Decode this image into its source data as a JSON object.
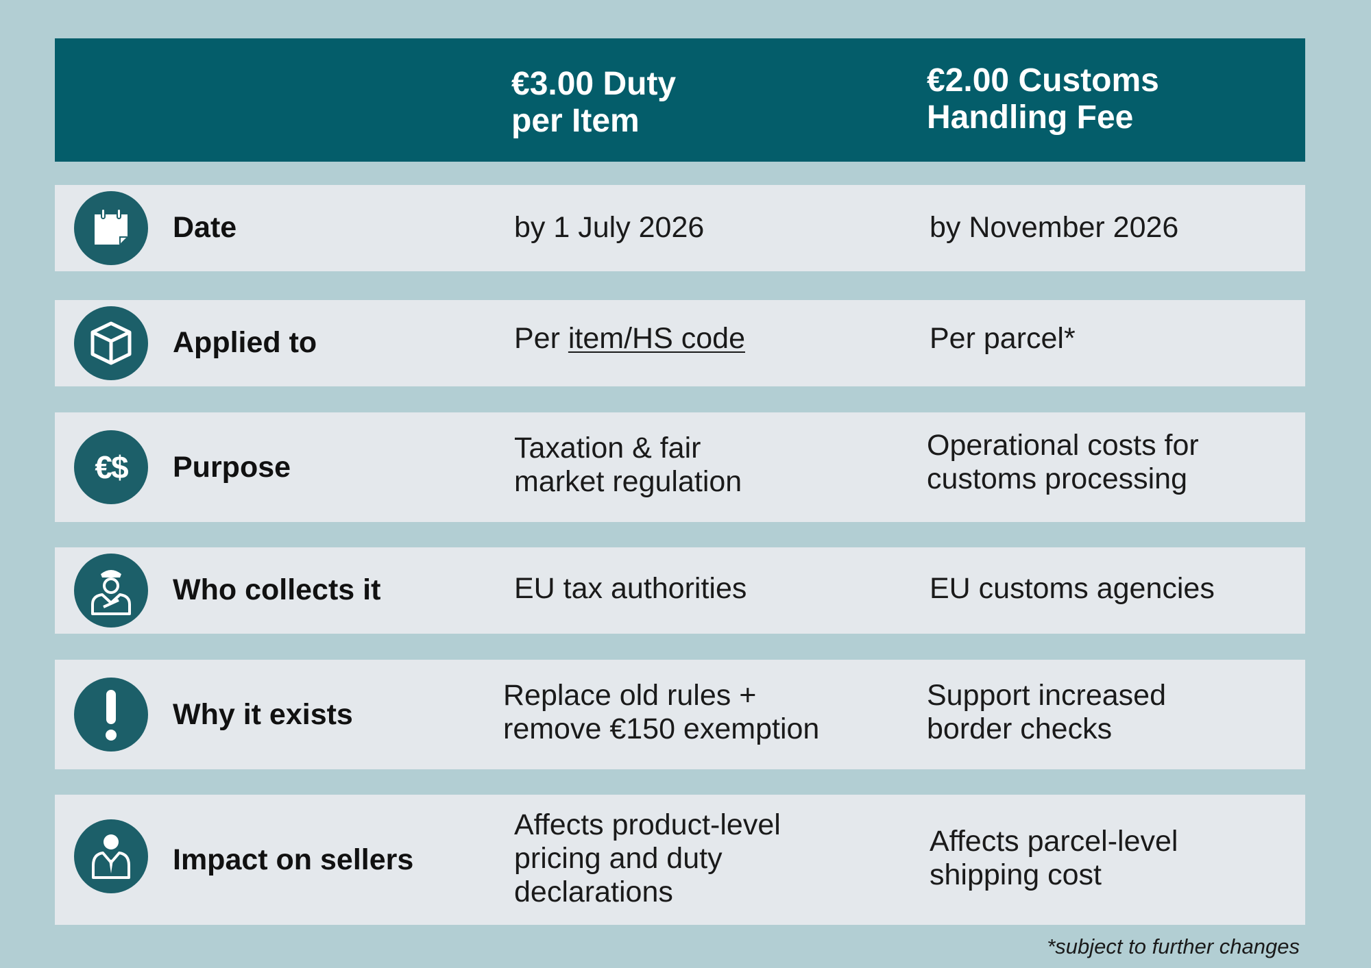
{
  "header": {
    "col1": [
      "€3.00 Duty",
      "per Item"
    ],
    "col2": [
      "€2.00 Customs",
      "Handling Fee"
    ]
  },
  "rows": [
    {
      "icon": "calendar-icon",
      "label": "Date",
      "col1": [
        "by 1 July 2026"
      ],
      "col2": [
        "by November 2026"
      ]
    },
    {
      "icon": "box-icon",
      "label": "Applied to",
      "col1_prefix": "Per ",
      "col1_link": "item/HS code",
      "col2": [
        "Per parcel*"
      ]
    },
    {
      "icon": "currency-icon",
      "icon_text": "€$",
      "label": "Purpose",
      "col1": [
        "Taxation & fair",
        "market regulation"
      ],
      "col2": [
        "Operational costs for",
        "customs processing"
      ]
    },
    {
      "icon": "customs-officer-icon",
      "label": "Who collects it",
      "col1": [
        "EU tax authorities"
      ],
      "col2": [
        "EU customs agencies"
      ]
    },
    {
      "icon": "exclamation-icon",
      "label": "Why it exists",
      "col1": [
        "Replace old rules +",
        "remove €150 exemption"
      ],
      "col2": [
        "Support increased",
        "border checks"
      ]
    },
    {
      "icon": "seller-icon",
      "label": "Impact on sellers",
      "col1": [
        "Affects product-level",
        "pricing and duty",
        "declarations"
      ],
      "col2": [
        "Affects parcel-level",
        "shipping cost"
      ]
    }
  ],
  "footnote": "*subject to further changes",
  "colors": {
    "header_bg": "#045d6a",
    "row_bg": "#e4e8ec",
    "page_bg": "#b2ced3",
    "icon_bg": "#1c5f69"
  }
}
